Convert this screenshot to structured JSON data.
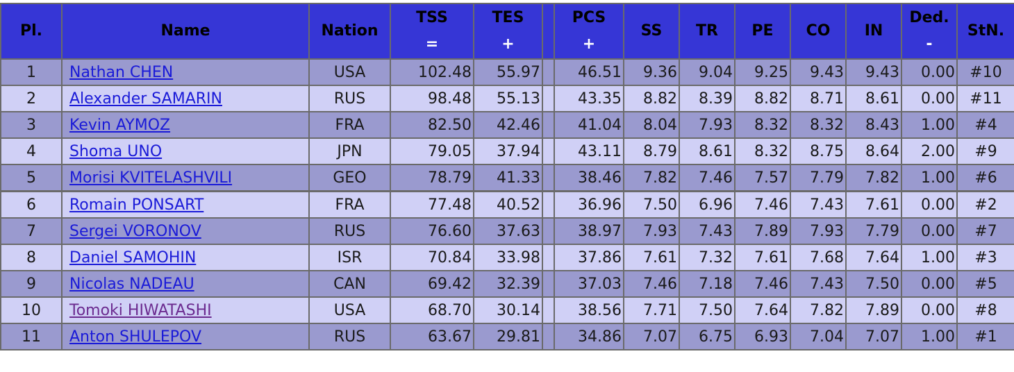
{
  "headers": {
    "pl": "Pl.",
    "name": "Name",
    "nation": "Nation",
    "tss": "TSS",
    "tss_sub": "=",
    "tes": "TES",
    "tes_sub": "+",
    "pcs": "PCS",
    "pcs_sub": "+",
    "ss": "SS",
    "tr": "TR",
    "pe": "PE",
    "co": "CO",
    "in": "IN",
    "ded": "Ded.",
    "ded_sub": "-",
    "stn": "StN."
  },
  "rows": [
    {
      "pl": "1",
      "name": "Nathan CHEN",
      "nation": "USA",
      "tss": "102.48",
      "tes": "55.97",
      "pcs": "46.51",
      "ss": "9.36",
      "tr": "9.04",
      "pe": "9.25",
      "co": "9.43",
      "in": "9.43",
      "ded": "0.00",
      "stn": "#10"
    },
    {
      "pl": "2",
      "name": "Alexander SAMARIN",
      "nation": "RUS",
      "tss": "98.48",
      "tes": "55.13",
      "pcs": "43.35",
      "ss": "8.82",
      "tr": "8.39",
      "pe": "8.82",
      "co": "8.71",
      "in": "8.61",
      "ded": "0.00",
      "stn": "#11"
    },
    {
      "pl": "3",
      "name": "Kevin AYMOZ",
      "nation": "FRA",
      "tss": "82.50",
      "tes": "42.46",
      "pcs": "41.04",
      "ss": "8.04",
      "tr": "7.93",
      "pe": "8.32",
      "co": "8.32",
      "in": "8.43",
      "ded": "1.00",
      "stn": "#4"
    },
    {
      "pl": "4",
      "name": "Shoma UNO",
      "nation": "JPN",
      "tss": "79.05",
      "tes": "37.94",
      "pcs": "43.11",
      "ss": "8.79",
      "tr": "8.61",
      "pe": "8.32",
      "co": "8.75",
      "in": "8.64",
      "ded": "2.00",
      "stn": "#9"
    },
    {
      "pl": "5",
      "name": "Morisi KVITELASHVILI",
      "nation": "GEO",
      "tss": "78.79",
      "tes": "41.33",
      "pcs": "38.46",
      "ss": "7.82",
      "tr": "7.46",
      "pe": "7.57",
      "co": "7.79",
      "in": "7.82",
      "ded": "1.00",
      "stn": "#6"
    },
    {
      "pl": "6",
      "name": "Romain PONSART",
      "nation": "FRA",
      "tss": "77.48",
      "tes": "40.52",
      "pcs": "36.96",
      "ss": "7.50",
      "tr": "6.96",
      "pe": "7.46",
      "co": "7.43",
      "in": "7.61",
      "ded": "0.00",
      "stn": "#2"
    },
    {
      "pl": "7",
      "name": "Sergei VORONOV",
      "nation": "RUS",
      "tss": "76.60",
      "tes": "37.63",
      "pcs": "38.97",
      "ss": "7.93",
      "tr": "7.43",
      "pe": "7.89",
      "co": "7.93",
      "in": "7.79",
      "ded": "0.00",
      "stn": "#7"
    },
    {
      "pl": "8",
      "name": "Daniel SAMOHIN",
      "nation": "ISR",
      "tss": "70.84",
      "tes": "33.98",
      "pcs": "37.86",
      "ss": "7.61",
      "tr": "7.32",
      "pe": "7.61",
      "co": "7.68",
      "in": "7.64",
      "ded": "1.00",
      "stn": "#3"
    },
    {
      "pl": "9",
      "name": "Nicolas NADEAU",
      "nation": "CAN",
      "tss": "69.42",
      "tes": "32.39",
      "pcs": "37.03",
      "ss": "7.46",
      "tr": "7.18",
      "pe": "7.46",
      "co": "7.43",
      "in": "7.50",
      "ded": "0.00",
      "stn": "#5"
    },
    {
      "pl": "10",
      "name": "Tomoki HIWATASHI",
      "nation": "USA",
      "tss": "68.70",
      "tes": "30.14",
      "pcs": "38.56",
      "ss": "7.71",
      "tr": "7.50",
      "pe": "7.64",
      "co": "7.82",
      "in": "7.89",
      "ded": "0.00",
      "stn": "#8",
      "visited": true
    },
    {
      "pl": "11",
      "name": "Anton SHULEPOV",
      "nation": "RUS",
      "tss": "63.67",
      "tes": "29.81",
      "pcs": "34.86",
      "ss": "7.07",
      "tr": "6.75",
      "pe": "6.93",
      "co": "7.04",
      "in": "7.07",
      "ded": "1.00",
      "stn": "#1"
    }
  ],
  "colors": {
    "header_bg": "#3636d6",
    "row_odd": "#9a9acf",
    "row_even": "#d0d0f6",
    "link": "#1a1ad8",
    "link_visited": "#6b2a8f"
  }
}
